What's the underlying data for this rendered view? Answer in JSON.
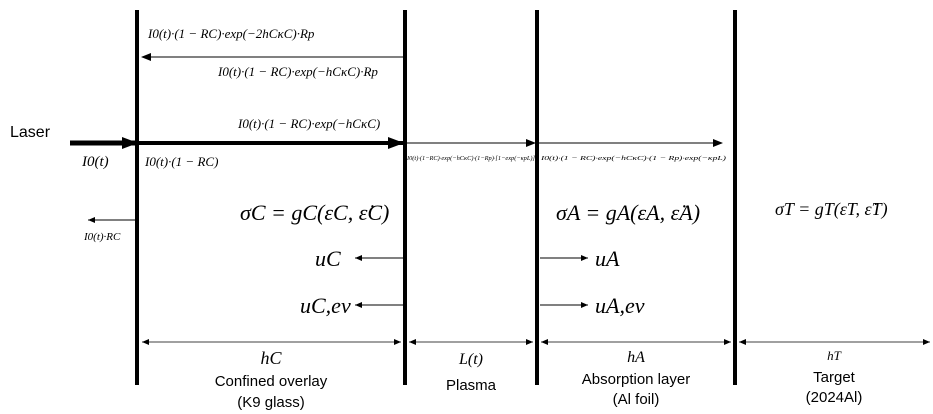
{
  "beams": {
    "laser": "Laser",
    "incident": "I0(t)",
    "entering": "I0(t)·(1 − RC)",
    "surface_reflection": "I0(t)·RC",
    "transmitted_overlay": "I0(t)·(1 − RC)·exp(−hCκC)",
    "reflected_out": "I0(t)·(1 − RC)·exp(−2hCκC)·Rp",
    "reflected_plasma": "I0(t)·(1 − RC)·exp(−hCκC)·Rp",
    "plasma_absorbed": "I0(t)·(1−RC)·exp(−hCκC)·(1−Rp)·[1−exp(−κpL)]",
    "foil_transmitted": "I0(t)·(1 − RC)·exp(−hCκC)·(1 − Rp)·exp(−κpL)"
  },
  "laws": {
    "overlay": "σC = gC(εC, ε̇C)",
    "absorption": "σA = gA(εA, ε̇A)",
    "target": "σT = gT(εT, ε̇T)"
  },
  "velocities": {
    "overlay": "uC",
    "overlay_ev": "uC,ev",
    "absorption": "uA",
    "absorption_ev": "uA,ev"
  },
  "regions": [
    {
      "thickness": "hC",
      "name": "Confined overlay",
      "material": "(K9 glass)"
    },
    {
      "thickness": "L(t)",
      "name": "Plasma"
    },
    {
      "thickness": "hA",
      "name": "Absorption layer",
      "material": "(Al foil)"
    },
    {
      "thickness": "hT",
      "name": "Target",
      "material": "(2024Al)"
    }
  ]
}
